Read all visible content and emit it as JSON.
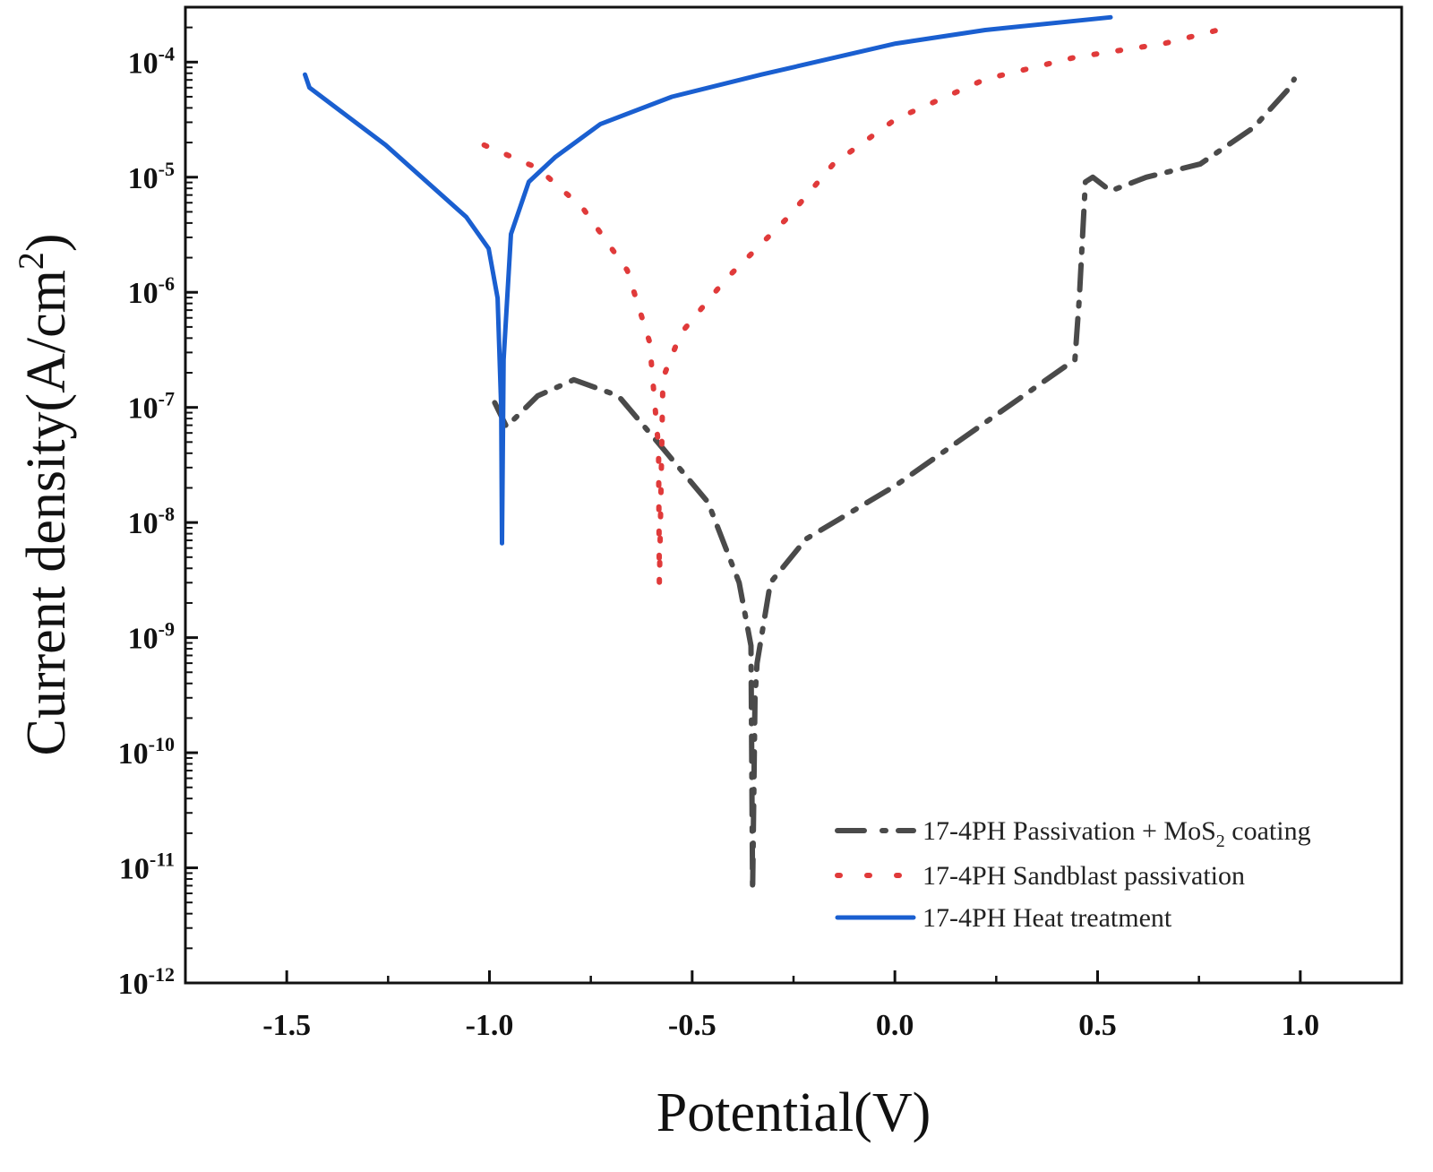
{
  "chart_data": {
    "type": "line",
    "xlabel": "Potential(V)",
    "ylabel": {
      "main": "Current density(A/cm",
      "sup": "2",
      "end": ")"
    },
    "xlim": [
      -1.75,
      1.25
    ],
    "ylim": [
      1e-12,
      0.0003
    ],
    "y_scale": "log",
    "grid": false,
    "legend_position": "bottom-right",
    "x_ticks": [
      {
        "value": -1.5,
        "label": "-1.5"
      },
      {
        "value": -1.0,
        "label": "-1.0"
      },
      {
        "value": -0.5,
        "label": "-0.5"
      },
      {
        "value": 0.0,
        "label": "0.0"
      },
      {
        "value": 0.5,
        "label": "0.5"
      },
      {
        "value": 1.0,
        "label": "1.0"
      }
    ],
    "y_ticks": [
      {
        "value": 0.0001,
        "base": "10",
        "exp": "-4"
      },
      {
        "value": 1e-05,
        "base": "10",
        "exp": "-5"
      },
      {
        "value": 1e-06,
        "base": "10",
        "exp": "-6"
      },
      {
        "value": 1e-07,
        "base": "10",
        "exp": "-7"
      },
      {
        "value": 1e-08,
        "base": "10",
        "exp": "-8"
      },
      {
        "value": 1e-09,
        "base": "10",
        "exp": "-9"
      },
      {
        "value": 1e-10,
        "base": "10",
        "exp": "-10"
      },
      {
        "value": 1e-11,
        "base": "10",
        "exp": "-11"
      },
      {
        "value": 1e-12,
        "base": "10",
        "exp": "-12"
      }
    ],
    "series": [
      {
        "name": {
          "main": "17-4PH Passivation + MoS",
          "sub": "2",
          "end": " coating"
        },
        "color": "#4a4a4a",
        "style": "dash-dot",
        "points": [
          [
            -0.987,
            1.1e-07
          ],
          [
            -0.958,
            6.8e-08
          ],
          [
            -0.881,
            1.26e-07
          ],
          [
            -0.792,
            1.74e-07
          ],
          [
            -0.682,
            1.26e-07
          ],
          [
            -0.572,
            4.4e-08
          ],
          [
            -0.461,
            1.5e-08
          ],
          [
            -0.384,
            3e-09
          ],
          [
            -0.355,
            8.5e-10
          ],
          [
            -0.351,
            6.3e-12
          ],
          [
            -0.345,
            3e-10
          ],
          [
            -0.34,
            6e-10
          ],
          [
            -0.307,
            3e-09
          ],
          [
            -0.219,
            7.2e-09
          ],
          [
            0.002,
            2.1e-08
          ],
          [
            0.223,
            7.4e-08
          ],
          [
            0.444,
            2.6e-07
          ],
          [
            0.455,
            8.9e-07
          ],
          [
            0.47,
            9.1e-06
          ],
          [
            0.488,
            1e-05
          ],
          [
            0.532,
            7.6e-06
          ],
          [
            0.62,
            1e-05
          ],
          [
            0.753,
            1.3e-05
          ],
          [
            0.885,
            2.7e-05
          ],
          [
            0.974,
            6e-05
          ],
          [
            0.985,
            7.1e-05
          ]
        ]
      },
      {
        "name": {
          "main": "17-4PH Sandblast passivation",
          "sub": "",
          "end": ""
        },
        "color": "#e03a3a",
        "style": "dotted",
        "points": [
          [
            -1.013,
            1.9e-05
          ],
          [
            -0.881,
            1.2e-05
          ],
          [
            -0.77,
            5.4e-06
          ],
          [
            -0.66,
            1.55e-06
          ],
          [
            -0.605,
            3.7e-07
          ],
          [
            -0.583,
            4.4e-08
          ],
          [
            -0.581,
            2.9e-09
          ],
          [
            -0.572,
            1.8e-07
          ],
          [
            -0.528,
            4.4e-07
          ],
          [
            -0.417,
            1.3e-06
          ],
          [
            -0.263,
            4.5e-06
          ],
          [
            -0.152,
            1.3e-05
          ],
          [
            0.002,
            3.2e-05
          ],
          [
            0.223,
            7.1e-05
          ],
          [
            0.444,
            0.00011
          ],
          [
            0.664,
            0.000145
          ],
          [
            0.797,
            0.00019
          ]
        ]
      },
      {
        "name": {
          "main": "17-4PH Heat treatment",
          "sub": "",
          "end": ""
        },
        "color": "#1a5fd0",
        "style": "solid",
        "points": [
          [
            -1.455,
            7.8e-05
          ],
          [
            -1.444,
            6e-05
          ],
          [
            -1.256,
            1.9e-05
          ],
          [
            -1.057,
            4.5e-06
          ],
          [
            -1.002,
            2.4e-06
          ],
          [
            -0.98,
            8.9e-07
          ],
          [
            -0.971,
            1e-07
          ],
          [
            -0.969,
            6.6e-09
          ],
          [
            -0.965,
            2.6e-07
          ],
          [
            -0.947,
            3.2e-06
          ],
          [
            -0.903,
            9.1e-06
          ],
          [
            -0.837,
            1.5e-05
          ],
          [
            -0.726,
            2.9e-05
          ],
          [
            -0.55,
            5e-05
          ],
          [
            -0.329,
            7.8e-05
          ],
          [
            0.002,
            0.000145
          ],
          [
            0.223,
            0.00019
          ],
          [
            0.532,
            0.000245
          ]
        ]
      }
    ]
  }
}
